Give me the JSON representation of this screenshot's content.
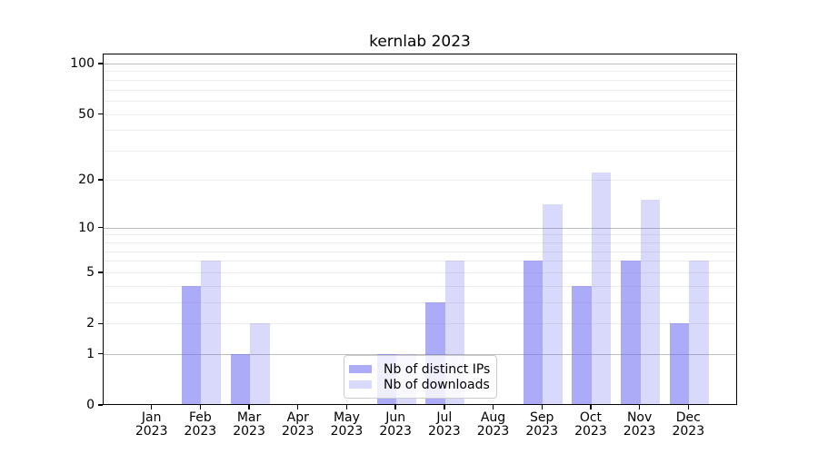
{
  "chart_data": {
    "type": "bar",
    "title": "kernlab 2023",
    "categories": [
      "Jan",
      "Feb",
      "Mar",
      "Apr",
      "May",
      "Jun",
      "Jul",
      "Aug",
      "Sep",
      "Oct",
      "Nov",
      "Dec"
    ],
    "x_year": "2023",
    "series": [
      {
        "name": "Nb of distinct IPs",
        "color": "#aaaaf7",
        "color_rgba": "rgba(102,102,240,0.55)",
        "values": [
          0,
          4,
          1,
          0,
          0,
          1,
          3,
          0,
          6,
          4,
          6,
          2
        ]
      },
      {
        "name": "Nb of downloads",
        "color": "#d9d9fa",
        "color_rgba": "rgba(102,102,240,0.25)",
        "values": [
          0,
          6,
          2,
          0,
          0,
          1,
          6,
          0,
          14,
          22,
          15,
          6
        ]
      }
    ],
    "yscale": "log1p",
    "ylim": [
      0,
      113
    ],
    "yticks": [
      0,
      1,
      2,
      5,
      10,
      20,
      50,
      100
    ],
    "grid_major": [
      1,
      10,
      100
    ],
    "grid_minor": [
      2,
      3,
      4,
      5,
      6,
      7,
      8,
      9,
      20,
      30,
      40,
      50,
      60,
      70,
      80,
      90
    ],
    "grid_major_color": "#bdbdbd",
    "grid_minor_color": "#ececec",
    "legend_position": "inside-bottom-center",
    "xlabel": "",
    "ylabel": ""
  }
}
